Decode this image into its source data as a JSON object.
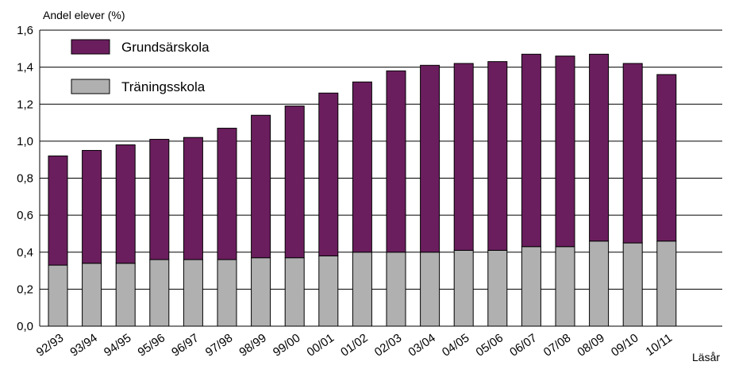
{
  "chart_data": {
    "type": "bar",
    "stacked": true,
    "title": "",
    "ylabel": "Andel elever (%)",
    "xlabel": "Läsår",
    "ylim": [
      0,
      1.6
    ],
    "yticks": [
      "0,0",
      "0,2",
      "0,4",
      "0,6",
      "0,8",
      "1,0",
      "1,2",
      "1,4",
      "1,6"
    ],
    "grid": true,
    "legend_position": "top-left",
    "categories": [
      "92/93",
      "93/94",
      "94/95",
      "95/96",
      "96/97",
      "97/98",
      "98/99",
      "99/00",
      "00/01",
      "01/02",
      "02/03",
      "03/04",
      "04/05",
      "05/06",
      "06/07",
      "07/08",
      "08/09",
      "09/10",
      "10/11"
    ],
    "series": [
      {
        "name": "Träningsskola",
        "color": "#b0b0b0",
        "values": [
          0.33,
          0.34,
          0.34,
          0.36,
          0.36,
          0.36,
          0.37,
          0.37,
          0.38,
          0.4,
          0.4,
          0.4,
          0.41,
          0.41,
          0.43,
          0.43,
          0.46,
          0.45,
          0.46
        ]
      },
      {
        "name": "Grundsärskola",
        "color": "#6b1e5e",
        "values": [
          0.59,
          0.61,
          0.64,
          0.65,
          0.66,
          0.71,
          0.77,
          0.82,
          0.88,
          0.92,
          0.98,
          1.01,
          1.01,
          1.02,
          1.04,
          1.03,
          1.01,
          0.97,
          0.9
        ]
      }
    ]
  }
}
